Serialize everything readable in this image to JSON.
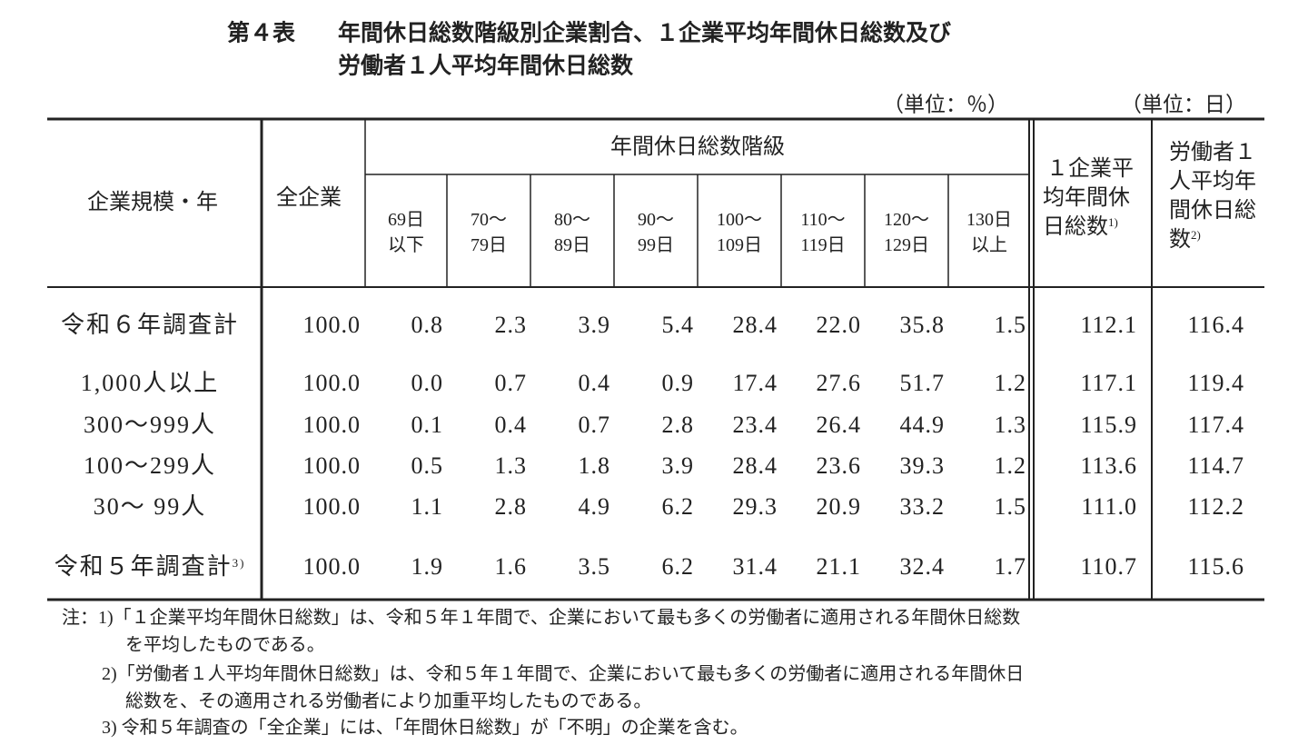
{
  "title": {
    "number": "第４表",
    "lines": [
      "年間休日総数階級別企業割合、１企業平均年間休日総数及び",
      "労働者１人平均年間休日総数"
    ]
  },
  "units": [
    "（単位：％）",
    "（単位：日）"
  ],
  "header": {
    "row_label": "企業規模・年",
    "all": "全企業",
    "group": "年間休日総数階級",
    "classes": [
      [
        "69日",
        "以下"
      ],
      [
        "70～",
        "79日"
      ],
      [
        "80～",
        "89日"
      ],
      [
        "90～",
        "99日"
      ],
      [
        "100～",
        "109日"
      ],
      [
        "110～",
        "119日"
      ],
      [
        "120～",
        "129日"
      ],
      [
        "130日",
        "以上"
      ]
    ],
    "avg_company": {
      "lines": [
        "１企業平",
        "均年間休",
        "日総数"
      ],
      "note": "1)"
    },
    "avg_worker": {
      "lines": [
        "労働者１",
        "人平均年",
        "間休日総",
        "数"
      ],
      "note": "2)"
    }
  },
  "rows": [
    {
      "label": "令和６年調査計",
      "values": [
        "100.0",
        "0.8",
        "2.3",
        "3.9",
        "5.4",
        "28.4",
        "22.0",
        "35.8",
        "1.5",
        "112.1",
        "116.4"
      ]
    },
    {
      "label": "1,000人以上",
      "values": [
        "100.0",
        "0.0",
        "0.7",
        "0.4",
        "0.9",
        "17.4",
        "27.6",
        "51.7",
        "1.2",
        "117.1",
        "119.4"
      ]
    },
    {
      "label": "300～999人",
      "values": [
        "100.0",
        "0.1",
        "0.4",
        "0.7",
        "2.8",
        "23.4",
        "26.4",
        "44.9",
        "1.3",
        "115.9",
        "117.4"
      ]
    },
    {
      "label": "100～299人",
      "values": [
        "100.0",
        "0.5",
        "1.3",
        "1.8",
        "3.9",
        "28.4",
        "23.6",
        "39.3",
        "1.2",
        "113.6",
        "114.7"
      ]
    },
    {
      "label": "30～ 99人",
      "values": [
        "100.0",
        "1.1",
        "2.8",
        "4.9",
        "6.2",
        "29.3",
        "20.9",
        "33.2",
        "1.5",
        "111.0",
        "112.2"
      ]
    },
    {
      "label": "令和５年調査計",
      "note": "3)",
      "values": [
        "100.0",
        "1.9",
        "1.6",
        "3.5",
        "6.2",
        "31.4",
        "21.1",
        "32.4",
        "1.7",
        "110.7",
        "115.6"
      ]
    }
  ],
  "notes": [
    "注：1)「１企業平均年間休日総数」は、令和５年１年間で、企業において最も多くの労働者に適用される年間休日総数",
    "を平均したものである。",
    "2)「労働者１人平均年間休日総数」は、令和５年１年間で、企業において最も多くの労働者に適用される年間休日",
    "総数を、その適用される労働者により加重平均したものである。",
    "3) 令和５年調査の「全企業」には、「年間休日総数」が「不明」の企業を含む。"
  ]
}
